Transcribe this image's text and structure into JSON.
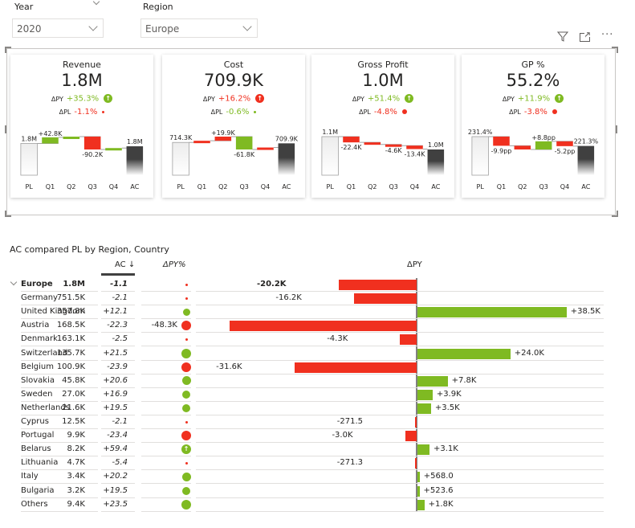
{
  "slicers": {
    "year": {
      "label": "Year",
      "value": "2020"
    },
    "region": {
      "label": "Region",
      "value": "Europe"
    }
  },
  "visual_header": {
    "icons": [
      "filter-icon",
      "focus-mode-icon",
      "more-options-icon"
    ],
    "more_label": "···"
  },
  "colors": {
    "positive": "#7fba22",
    "negative": "#f0301f",
    "ac_bar": "#404040",
    "pl_bar": "#f0f0f0",
    "axis": "#808080"
  },
  "cards": [
    {
      "title": "Revenue",
      "value": "1.8M",
      "dpy_label": "ΔPY",
      "dpy": "+35.3%",
      "dpy_sign": "pos",
      "dpy_icon": "arrow-up",
      "dpl_label": "ΔPL",
      "dpl": "-1.1%",
      "dpl_sign": "neg",
      "waterfall": {
        "categories": [
          "PL",
          "Q1",
          "Q2",
          "Q3",
          "Q4",
          "AC"
        ],
        "start_label": "1.8M",
        "end_label": "1.8M",
        "start": 1.8,
        "deltas": [
          0.0428,
          0.005,
          -0.0902,
          0.01
        ],
        "end": 1.78,
        "labels": [
          "+42.8K",
          "",
          "-90.2K",
          ""
        ]
      }
    },
    {
      "title": "Cost",
      "value": "709.9K",
      "dpy_label": "ΔPY",
      "dpy": "+16.2%",
      "dpy_sign": "neg",
      "dpy_icon": "arrow-up",
      "dpl_label": "ΔPL",
      "dpl": "-0.6%",
      "dpl_sign": "pos",
      "waterfall": {
        "categories": [
          "PL",
          "Q1",
          "Q2",
          "Q3",
          "Q4",
          "AC"
        ],
        "start_label": "714.3K",
        "end_label": "709.9K",
        "start": 714.3,
        "deltas": [
          8.0,
          19.9,
          -61.8,
          9.5
        ],
        "end": 709.9,
        "labels": [
          "",
          "+19.9K",
          "-61.8K",
          ""
        ]
      }
    },
    {
      "title": "Gross Profit",
      "value": "1.0M",
      "dpy_label": "ΔPY",
      "dpy": "+51.4%",
      "dpy_sign": "pos",
      "dpy_icon": "arrow-up",
      "dpl_label": "ΔPL",
      "dpl": "-4.8%",
      "dpl_sign": "neg",
      "waterfall": {
        "categories": [
          "PL",
          "Q1",
          "Q2",
          "Q3",
          "Q4",
          "AC"
        ],
        "start_label": "1.1M",
        "end_label": "1.0M",
        "start": 1.1,
        "deltas": [
          -0.0224,
          -0.008,
          -0.0046,
          -0.0134
        ],
        "end": 1.05,
        "labels": [
          "-22.4K",
          "",
          "-4.6K",
          "-13.4K"
        ]
      }
    },
    {
      "title": "GP %",
      "value": "55.2%",
      "dpy_label": "ΔPY",
      "dpy": "+11.9%",
      "dpy_sign": "pos",
      "dpy_icon": "arrow-up",
      "dpl_label": "ΔPL",
      "dpl": "-3.8%",
      "dpl_sign": "neg",
      "waterfall": {
        "categories": [
          "PL",
          "Q1",
          "Q2",
          "Q3",
          "Q4",
          "AC"
        ],
        "start_label": "231.4%",
        "end_label": "221.3%",
        "start": 231.4,
        "deltas": [
          -9.9,
          -4.0,
          8.8,
          -5.2
        ],
        "end": 221.3,
        "labels": [
          "-9.9pp",
          "",
          "+8.8pp",
          "-5.2pp"
        ]
      }
    }
  ],
  "table": {
    "title": "AC compared PL by Region, Country",
    "headers": {
      "ac": "AC ↓",
      "dpy_pct": "ΔPY%",
      "dpy": "ΔPY"
    },
    "rows": [
      {
        "name": "Europe",
        "ac": "1.8M",
        "dpy_pct": "-1.1",
        "dpy_pct_val": -1.1,
        "dpy": "-20.2K",
        "dpy_val": -20.2,
        "total": true
      },
      {
        "name": "Germany",
        "ac": "751.5K",
        "dpy_pct": "-2.1",
        "dpy_pct_val": -2.1,
        "dpy": "-16.2K",
        "dpy_val": -16.2
      },
      {
        "name": "United Kingdom",
        "ac": "357.8K",
        "dpy_pct": "+12.1",
        "dpy_pct_val": 12.1,
        "dpy": "+38.5K",
        "dpy_val": 38.5
      },
      {
        "name": "Austria",
        "ac": "168.5K",
        "dpy_pct": "-22.3",
        "dpy_pct_val": -22.3,
        "dpy": "-48.3K",
        "dpy_val": -48.3
      },
      {
        "name": "Denmark",
        "ac": "163.1K",
        "dpy_pct": "-2.5",
        "dpy_pct_val": -2.5,
        "dpy": "-4.3K",
        "dpy_val": -4.3
      },
      {
        "name": "Switzerland",
        "ac": "135.7K",
        "dpy_pct": "+21.5",
        "dpy_pct_val": 21.5,
        "dpy": "+24.0K",
        "dpy_val": 24.0
      },
      {
        "name": "Belgium",
        "ac": "100.9K",
        "dpy_pct": "-23.9",
        "dpy_pct_val": -23.9,
        "dpy": "-31.6K",
        "dpy_val": -31.6
      },
      {
        "name": "Slovakia",
        "ac": "45.8K",
        "dpy_pct": "+20.6",
        "dpy_pct_val": 20.6,
        "dpy": "+7.8K",
        "dpy_val": 7.8
      },
      {
        "name": "Sweden",
        "ac": "27.0K",
        "dpy_pct": "+16.9",
        "dpy_pct_val": 16.9,
        "dpy": "+3.9K",
        "dpy_val": 3.9
      },
      {
        "name": "Netherlands",
        "ac": "21.6K",
        "dpy_pct": "+19.5",
        "dpy_pct_val": 19.5,
        "dpy": "+3.5K",
        "dpy_val": 3.5
      },
      {
        "name": "Cyprus",
        "ac": "12.5K",
        "dpy_pct": "-2.1",
        "dpy_pct_val": -2.1,
        "dpy": "-271.5",
        "dpy_val": -0.2715
      },
      {
        "name": "Portugal",
        "ac": "9.9K",
        "dpy_pct": "-23.4",
        "dpy_pct_val": -23.4,
        "dpy": "-3.0K",
        "dpy_val": -3.0
      },
      {
        "name": "Belarus",
        "ac": "8.2K",
        "dpy_pct": "+59.4",
        "dpy_pct_val": 59.4,
        "dpy": "+3.1K",
        "dpy_val": 3.1,
        "arrow": true
      },
      {
        "name": "Lithuania",
        "ac": "4.7K",
        "dpy_pct": "-5.4",
        "dpy_pct_val": -5.4,
        "dpy": "-271.3",
        "dpy_val": -0.2713
      },
      {
        "name": "Italy",
        "ac": "3.4K",
        "dpy_pct": "+20.2",
        "dpy_pct_val": 20.2,
        "dpy": "+568.0",
        "dpy_val": 0.568
      },
      {
        "name": "Bulgaria",
        "ac": "3.2K",
        "dpy_pct": "+19.5",
        "dpy_pct_val": 19.5,
        "dpy": "+523.6",
        "dpy_val": 0.5236
      },
      {
        "name": "Others",
        "ac": "9.4K",
        "dpy_pct": "+23.5",
        "dpy_pct_val": 23.5,
        "dpy": "+1.8K",
        "dpy_val": 1.8
      }
    ]
  }
}
